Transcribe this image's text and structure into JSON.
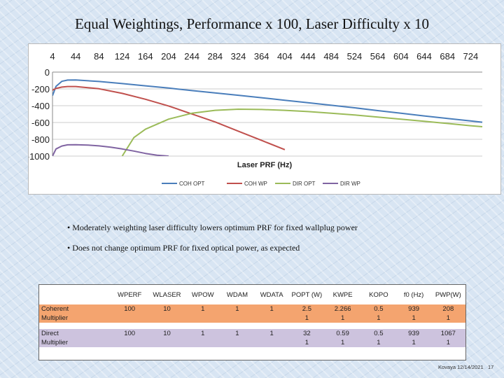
{
  "slide": {
    "title": "Equal Weightings, Performance x 100, Laser Difficulty x 10",
    "bullets": [
      "• Moderately weighting laser difficulty lowers optimum PRF for fixed wallplug power",
      "• Does not change optimum PRF for fixed optical power, as expected"
    ],
    "footer": "Kovaya 12/14/2021",
    "page_number": "17"
  },
  "chart_data": {
    "type": "line",
    "title": "",
    "xlabel": "Laser PRF (Hz)",
    "ylabel": "",
    "xlim": [
      4,
      744
    ],
    "ylim": [
      -1000,
      0
    ],
    "x_ticks": [
      4,
      44,
      84,
      124,
      164,
      204,
      244,
      284,
      324,
      364,
      404,
      444,
      484,
      524,
      564,
      604,
      644,
      684,
      724
    ],
    "y_ticks": [
      0,
      -200,
      -400,
      -600,
      -800,
      -1000
    ],
    "x_tick_labels": [
      "4",
      "44",
      "84",
      "124",
      "164",
      "204",
      "244",
      "284",
      "324",
      "364",
      "404",
      "444",
      "484",
      "524",
      "564",
      "604",
      "644",
      "684",
      "724"
    ],
    "y_tick_labels": [
      "0",
      "-200",
      "-400",
      "-600",
      "-800",
      "-1000"
    ],
    "grid": true,
    "legend_position": "bottom",
    "series": [
      {
        "name": "COH OPT",
        "color": "#4a7ebb",
        "x": [
          4,
          10,
          20,
          30,
          44,
          84,
          124,
          164,
          204,
          244,
          284,
          324,
          364,
          404,
          444,
          484,
          524,
          564,
          604,
          644,
          684,
          724,
          744
        ],
        "y": [
          -280,
          -170,
          -110,
          -95,
          -94,
          -112,
          -137,
          -163,
          -190,
          -220,
          -248,
          -276,
          -305,
          -335,
          -365,
          -395,
          -425,
          -458,
          -490,
          -522,
          -552,
          -582,
          -597
        ]
      },
      {
        "name": "COH WP",
        "color": "#c0504d",
        "x": [
          4,
          10,
          20,
          30,
          44,
          84,
          124,
          164,
          204,
          244,
          284,
          324,
          364,
          404
        ],
        "y": [
          -215,
          -195,
          -178,
          -172,
          -172,
          -198,
          -253,
          -323,
          -403,
          -498,
          -593,
          -703,
          -813,
          -923
        ]
      },
      {
        "name": "DIR OPT",
        "color": "#9bbb59",
        "x": [
          124,
          144,
          164,
          204,
          244,
          284,
          324,
          364,
          404,
          444,
          484,
          524,
          564,
          604,
          644,
          684,
          724,
          744
        ],
        "y": [
          -1000,
          -780,
          -680,
          -560,
          -490,
          -455,
          -442,
          -445,
          -455,
          -470,
          -490,
          -510,
          -535,
          -560,
          -585,
          -612,
          -638,
          -650
        ]
      },
      {
        "name": "DIR WP",
        "color": "#8064a2",
        "x": [
          4,
          10,
          20,
          30,
          44,
          64,
          84,
          104,
          124,
          144,
          164,
          184,
          204
        ],
        "y": [
          -1000,
          -915,
          -880,
          -866,
          -864,
          -868,
          -878,
          -894,
          -915,
          -940,
          -968,
          -990,
          -1000
        ]
      }
    ]
  },
  "table": {
    "headers": [
      "",
      "WPERF",
      "WLASER",
      "WPOW",
      "WDAM",
      "WDATA",
      "POPT (W)",
      "KWPE",
      "KOPO",
      "f0 (Hz)",
      "PWP(W)"
    ],
    "rows": [
      {
        "type": "coh",
        "cells": [
          "Coherent",
          "100",
          "10",
          "1",
          "1",
          "1",
          "2.5",
          "2.266",
          "0.5",
          "939",
          "208"
        ]
      },
      {
        "type": "coh",
        "cells": [
          "Multiplier",
          "",
          "",
          "",
          "",
          "",
          "1",
          "1",
          "1",
          "1",
          "1"
        ]
      },
      {
        "type": "dir",
        "cells": [
          "Direct",
          "100",
          "10",
          "1",
          "1",
          "1",
          "32",
          "0.59",
          "0.5",
          "939",
          "1067"
        ]
      },
      {
        "type": "dir",
        "cells": [
          "Multiplier",
          "",
          "",
          "",
          "",
          "",
          "1",
          "1",
          "1",
          "1",
          "1"
        ]
      }
    ]
  }
}
